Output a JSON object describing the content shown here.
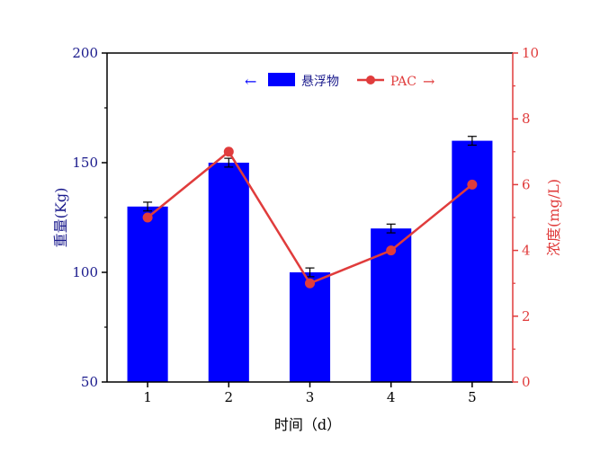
{
  "chart_data": {
    "type": "bar+line",
    "categories": [
      "1",
      "2",
      "3",
      "4",
      "5"
    ],
    "xlabel": "时间（d）",
    "series": [
      {
        "name": "悬浮物",
        "type": "bar",
        "axis": "left",
        "values": [
          130,
          150,
          100,
          120,
          160
        ],
        "errors": [
          2,
          2,
          2,
          2,
          2
        ],
        "color": "#0000ff"
      },
      {
        "name": "PAC",
        "type": "line",
        "axis": "right",
        "values": [
          5,
          7,
          3,
          4,
          6
        ],
        "color": "#e03c3c"
      }
    ],
    "left_axis": {
      "label": "重量(Kg)",
      "range": [
        50,
        200
      ],
      "ticks": [
        50,
        100,
        150,
        200
      ],
      "color": "#1a1a8c"
    },
    "right_axis": {
      "label": "浓度(mg/L)",
      "range": [
        0,
        10
      ],
      "ticks": [
        0,
        2,
        4,
        6,
        8,
        10
      ],
      "color": "#e03c3c"
    },
    "legend": {
      "position": "top-center",
      "left_arrow": "←",
      "right_arrow": "→"
    },
    "grid": false
  }
}
